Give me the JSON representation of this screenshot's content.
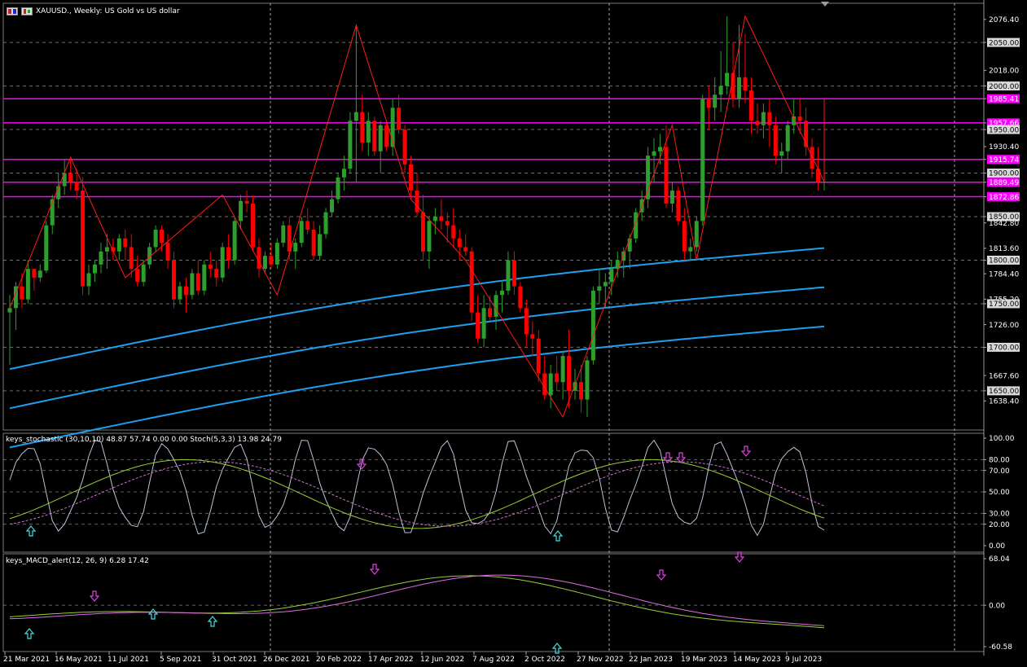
{
  "header": {
    "title": "XAUUSD., Weekly:  US Gold vs US dollar"
  },
  "colors": {
    "background": "#000000",
    "grid": "#c8c8c8",
    "bull": "#2e9e2e",
    "bear": "#ff0000",
    "zigzag": "#ff1a1a",
    "bands": "#1e9ff0",
    "hline": "#ff00ff",
    "stoch_main": "#b8c4d8",
    "stoch_k": "#9acd32",
    "stoch_d": "#d070d0",
    "macd_main": "#9acd32",
    "macd_signal": "#e070e0",
    "arrow_up": "#40e0e0",
    "arrow_down": "#e040e0"
  },
  "price_axis": {
    "ticks": [
      "2076.40",
      "2050.00",
      "2018.00",
      "2000.00",
      "1985.41",
      "1957.66",
      "1950.00",
      "1930.40",
      "1915.74",
      "1900.00",
      "1889.49",
      "1872.86",
      "1850.00",
      "1842.80",
      "1813.60",
      "1800.00",
      "1784.40",
      "1755.20",
      "1750.00",
      "1726.00",
      "1700.00",
      "1667.60",
      "1650.00",
      "1638.40"
    ],
    "boxed": [
      "2050.00",
      "2000.00",
      "1950.00",
      "1900.00",
      "1850.00",
      "1800.00",
      "1750.00",
      "1700.00",
      "1650.00"
    ],
    "magenta": [
      "1985.41",
      "1957.66",
      "1915.74",
      "1889.49",
      "1872.86"
    ],
    "ylim": [
      1605,
      2095
    ]
  },
  "hlines": [
    1985.41,
    1957.66,
    1915.74,
    1889.49,
    1872.86
  ],
  "time_axis": {
    "labels": [
      "21 Mar 2021",
      "16 May 2021",
      "11 Jul 2021",
      "5 Sep 2021",
      "31 Oct 2021",
      "26 Dec 2021",
      "20 Feb 2022",
      "17 Apr 2022",
      "12 Jun 2022",
      "7 Aug 2022",
      "2 Oct 2022",
      "27 Nov 2022",
      "22 Jan 2023",
      "19 Mar 2023",
      "14 May 2023",
      "9 Jul 2023"
    ]
  },
  "stochastic": {
    "label": "keys_stochastic (30,10,10) 48.87 57.74 0.00 0.00 Stoch(5,3,3) 13.98 24.79",
    "ticks": [
      "100.00",
      "80.00",
      "70.00",
      "50.00",
      "30.00",
      "20.00",
      "0.00"
    ]
  },
  "macd": {
    "label": "keys_MACD_alert(12, 26, 9) 6.28 17.42",
    "ticks": [
      "68.04",
      "0.00",
      "-60.58"
    ]
  },
  "chart_data": {
    "type": "candlestick",
    "series": [
      {
        "name": "XAUUSD.",
        "values": [
          [
            1740,
            1760,
            1680,
            1745
          ],
          [
            1745,
            1775,
            1720,
            1770
          ],
          [
            1770,
            1785,
            1745,
            1755
          ],
          [
            1755,
            1800,
            1750,
            1790
          ],
          [
            1790,
            1790,
            1765,
            1780
          ],
          [
            1780,
            1795,
            1775,
            1788
          ],
          [
            1788,
            1845,
            1785,
            1840
          ],
          [
            1840,
            1875,
            1830,
            1870
          ],
          [
            1870,
            1900,
            1860,
            1885
          ],
          [
            1885,
            1915,
            1875,
            1900
          ],
          [
            1900,
            1918,
            1880,
            1890
          ],
          [
            1890,
            1905,
            1870,
            1880
          ],
          [
            1880,
            1895,
            1760,
            1770
          ],
          [
            1770,
            1795,
            1760,
            1785
          ],
          [
            1785,
            1800,
            1775,
            1795
          ],
          [
            1795,
            1820,
            1785,
            1810
          ],
          [
            1810,
            1830,
            1790,
            1815
          ],
          [
            1815,
            1825,
            1800,
            1810
          ],
          [
            1810,
            1830,
            1800,
            1825
          ],
          [
            1825,
            1835,
            1800,
            1815
          ],
          [
            1815,
            1830,
            1780,
            1790
          ],
          [
            1790,
            1805,
            1770,
            1775
          ],
          [
            1775,
            1800,
            1770,
            1795
          ],
          [
            1795,
            1820,
            1790,
            1815
          ],
          [
            1815,
            1840,
            1810,
            1835
          ],
          [
            1835,
            1840,
            1810,
            1820
          ],
          [
            1820,
            1830,
            1790,
            1800
          ],
          [
            1800,
            1810,
            1745,
            1755
          ],
          [
            1755,
            1775,
            1750,
            1770
          ],
          [
            1770,
            1780,
            1740,
            1760
          ],
          [
            1760,
            1790,
            1755,
            1785
          ],
          [
            1785,
            1800,
            1760,
            1765
          ],
          [
            1765,
            1800,
            1760,
            1795
          ],
          [
            1795,
            1810,
            1780,
            1790
          ],
          [
            1790,
            1800,
            1770,
            1780
          ],
          [
            1780,
            1820,
            1775,
            1815
          ],
          [
            1815,
            1830,
            1790,
            1800
          ],
          [
            1800,
            1850,
            1795,
            1845
          ],
          [
            1845,
            1875,
            1835,
            1868
          ],
          [
            1868,
            1880,
            1855,
            1865
          ],
          [
            1865,
            1875,
            1810,
            1815
          ],
          [
            1815,
            1825,
            1780,
            1790
          ],
          [
            1790,
            1810,
            1785,
            1805
          ],
          [
            1805,
            1820,
            1790,
            1795
          ],
          [
            1795,
            1825,
            1790,
            1820
          ],
          [
            1820,
            1845,
            1815,
            1840
          ],
          [
            1840,
            1850,
            1800,
            1810
          ],
          [
            1810,
            1825,
            1790,
            1820
          ],
          [
            1820,
            1850,
            1815,
            1845
          ],
          [
            1845,
            1860,
            1830,
            1835
          ],
          [
            1835,
            1845,
            1800,
            1805
          ],
          [
            1805,
            1840,
            1800,
            1830
          ],
          [
            1830,
            1860,
            1825,
            1855
          ],
          [
            1855,
            1880,
            1850,
            1870
          ],
          [
            1870,
            1900,
            1865,
            1895
          ],
          [
            1895,
            1920,
            1880,
            1905
          ],
          [
            1905,
            1970,
            1900,
            1960
          ],
          [
            1960,
            2070,
            1890,
            1970
          ],
          [
            1970,
            1990,
            1925,
            1935
          ],
          [
            1935,
            1970,
            1920,
            1960
          ],
          [
            1960,
            1965,
            1920,
            1925
          ],
          [
            1925,
            1960,
            1900,
            1955
          ],
          [
            1955,
            1960,
            1925,
            1930
          ],
          [
            1930,
            1985,
            1920,
            1975
          ],
          [
            1975,
            1990,
            1945,
            1950
          ],
          [
            1950,
            1955,
            1900,
            1910
          ],
          [
            1910,
            1920,
            1870,
            1880
          ],
          [
            1880,
            1900,
            1850,
            1855
          ],
          [
            1855,
            1875,
            1800,
            1810
          ],
          [
            1810,
            1850,
            1790,
            1845
          ],
          [
            1845,
            1860,
            1830,
            1850
          ],
          [
            1850,
            1870,
            1835,
            1845
          ],
          [
            1845,
            1855,
            1820,
            1840
          ],
          [
            1840,
            1860,
            1815,
            1825
          ],
          [
            1825,
            1835,
            1800,
            1815
          ],
          [
            1815,
            1830,
            1805,
            1810
          ],
          [
            1810,
            1815,
            1730,
            1740
          ],
          [
            1740,
            1760,
            1705,
            1710
          ],
          [
            1710,
            1760,
            1700,
            1745
          ],
          [
            1745,
            1760,
            1730,
            1735
          ],
          [
            1735,
            1765,
            1720,
            1760
          ],
          [
            1760,
            1775,
            1740,
            1765
          ],
          [
            1765,
            1810,
            1760,
            1800
          ],
          [
            1800,
            1810,
            1760,
            1770
          ],
          [
            1770,
            1775,
            1740,
            1745
          ],
          [
            1745,
            1755,
            1700,
            1715
          ],
          [
            1715,
            1730,
            1690,
            1710
          ],
          [
            1710,
            1720,
            1660,
            1670
          ],
          [
            1670,
            1690,
            1640,
            1645
          ],
          [
            1645,
            1680,
            1630,
            1670
          ],
          [
            1670,
            1690,
            1650,
            1660
          ],
          [
            1660,
            1695,
            1640,
            1690
          ],
          [
            1690,
            1720,
            1630,
            1650
          ],
          [
            1650,
            1675,
            1640,
            1660
          ],
          [
            1660,
            1680,
            1625,
            1640
          ],
          [
            1640,
            1690,
            1620,
            1685
          ],
          [
            1685,
            1770,
            1680,
            1765
          ],
          [
            1765,
            1790,
            1750,
            1770
          ],
          [
            1770,
            1785,
            1745,
            1775
          ],
          [
            1775,
            1800,
            1760,
            1790
          ],
          [
            1790,
            1810,
            1780,
            1800
          ],
          [
            1800,
            1815,
            1780,
            1810
          ],
          [
            1810,
            1830,
            1790,
            1825
          ],
          [
            1825,
            1860,
            1820,
            1855
          ],
          [
            1855,
            1880,
            1845,
            1870
          ],
          [
            1870,
            1930,
            1860,
            1920
          ],
          [
            1920,
            1940,
            1890,
            1925
          ],
          [
            1925,
            1945,
            1910,
            1930
          ],
          [
            1930,
            1955,
            1860,
            1865
          ],
          [
            1865,
            1890,
            1855,
            1880
          ],
          [
            1880,
            1885,
            1840,
            1845
          ],
          [
            1845,
            1860,
            1800,
            1810
          ],
          [
            1810,
            1825,
            1800,
            1815
          ],
          [
            1815,
            1850,
            1810,
            1845
          ],
          [
            1845,
            1990,
            1840,
            1985
          ],
          [
            1985,
            2000,
            1950,
            1975
          ],
          [
            1975,
            2010,
            1960,
            1990
          ],
          [
            1990,
            2040,
            1970,
            2000
          ],
          [
            2000,
            2080,
            1990,
            2015
          ],
          [
            2015,
            2050,
            1975,
            1985
          ],
          [
            1985,
            2070,
            1975,
            2010
          ],
          [
            2010,
            2060,
            1980,
            1995
          ],
          [
            1995,
            2010,
            1945,
            1960
          ],
          [
            1960,
            1980,
            1945,
            1955
          ],
          [
            1955,
            1980,
            1940,
            1970
          ],
          [
            1970,
            1985,
            1930,
            1955
          ],
          [
            1955,
            1965,
            1910,
            1920
          ],
          [
            1920,
            1935,
            1900,
            1925
          ],
          [
            1925,
            1960,
            1915,
            1955
          ],
          [
            1955,
            1985,
            1945,
            1965
          ],
          [
            1965,
            1985,
            1945,
            1960
          ],
          [
            1960,
            1975,
            1920,
            1930
          ],
          [
            1930,
            1940,
            1895,
            1905
          ],
          [
            1905,
            1930,
            1880,
            1890
          ],
          [
            1890,
            1920,
            1880,
            1890
          ]
        ]
      },
      {
        "name": "bands",
        "values": []
      }
    ]
  }
}
